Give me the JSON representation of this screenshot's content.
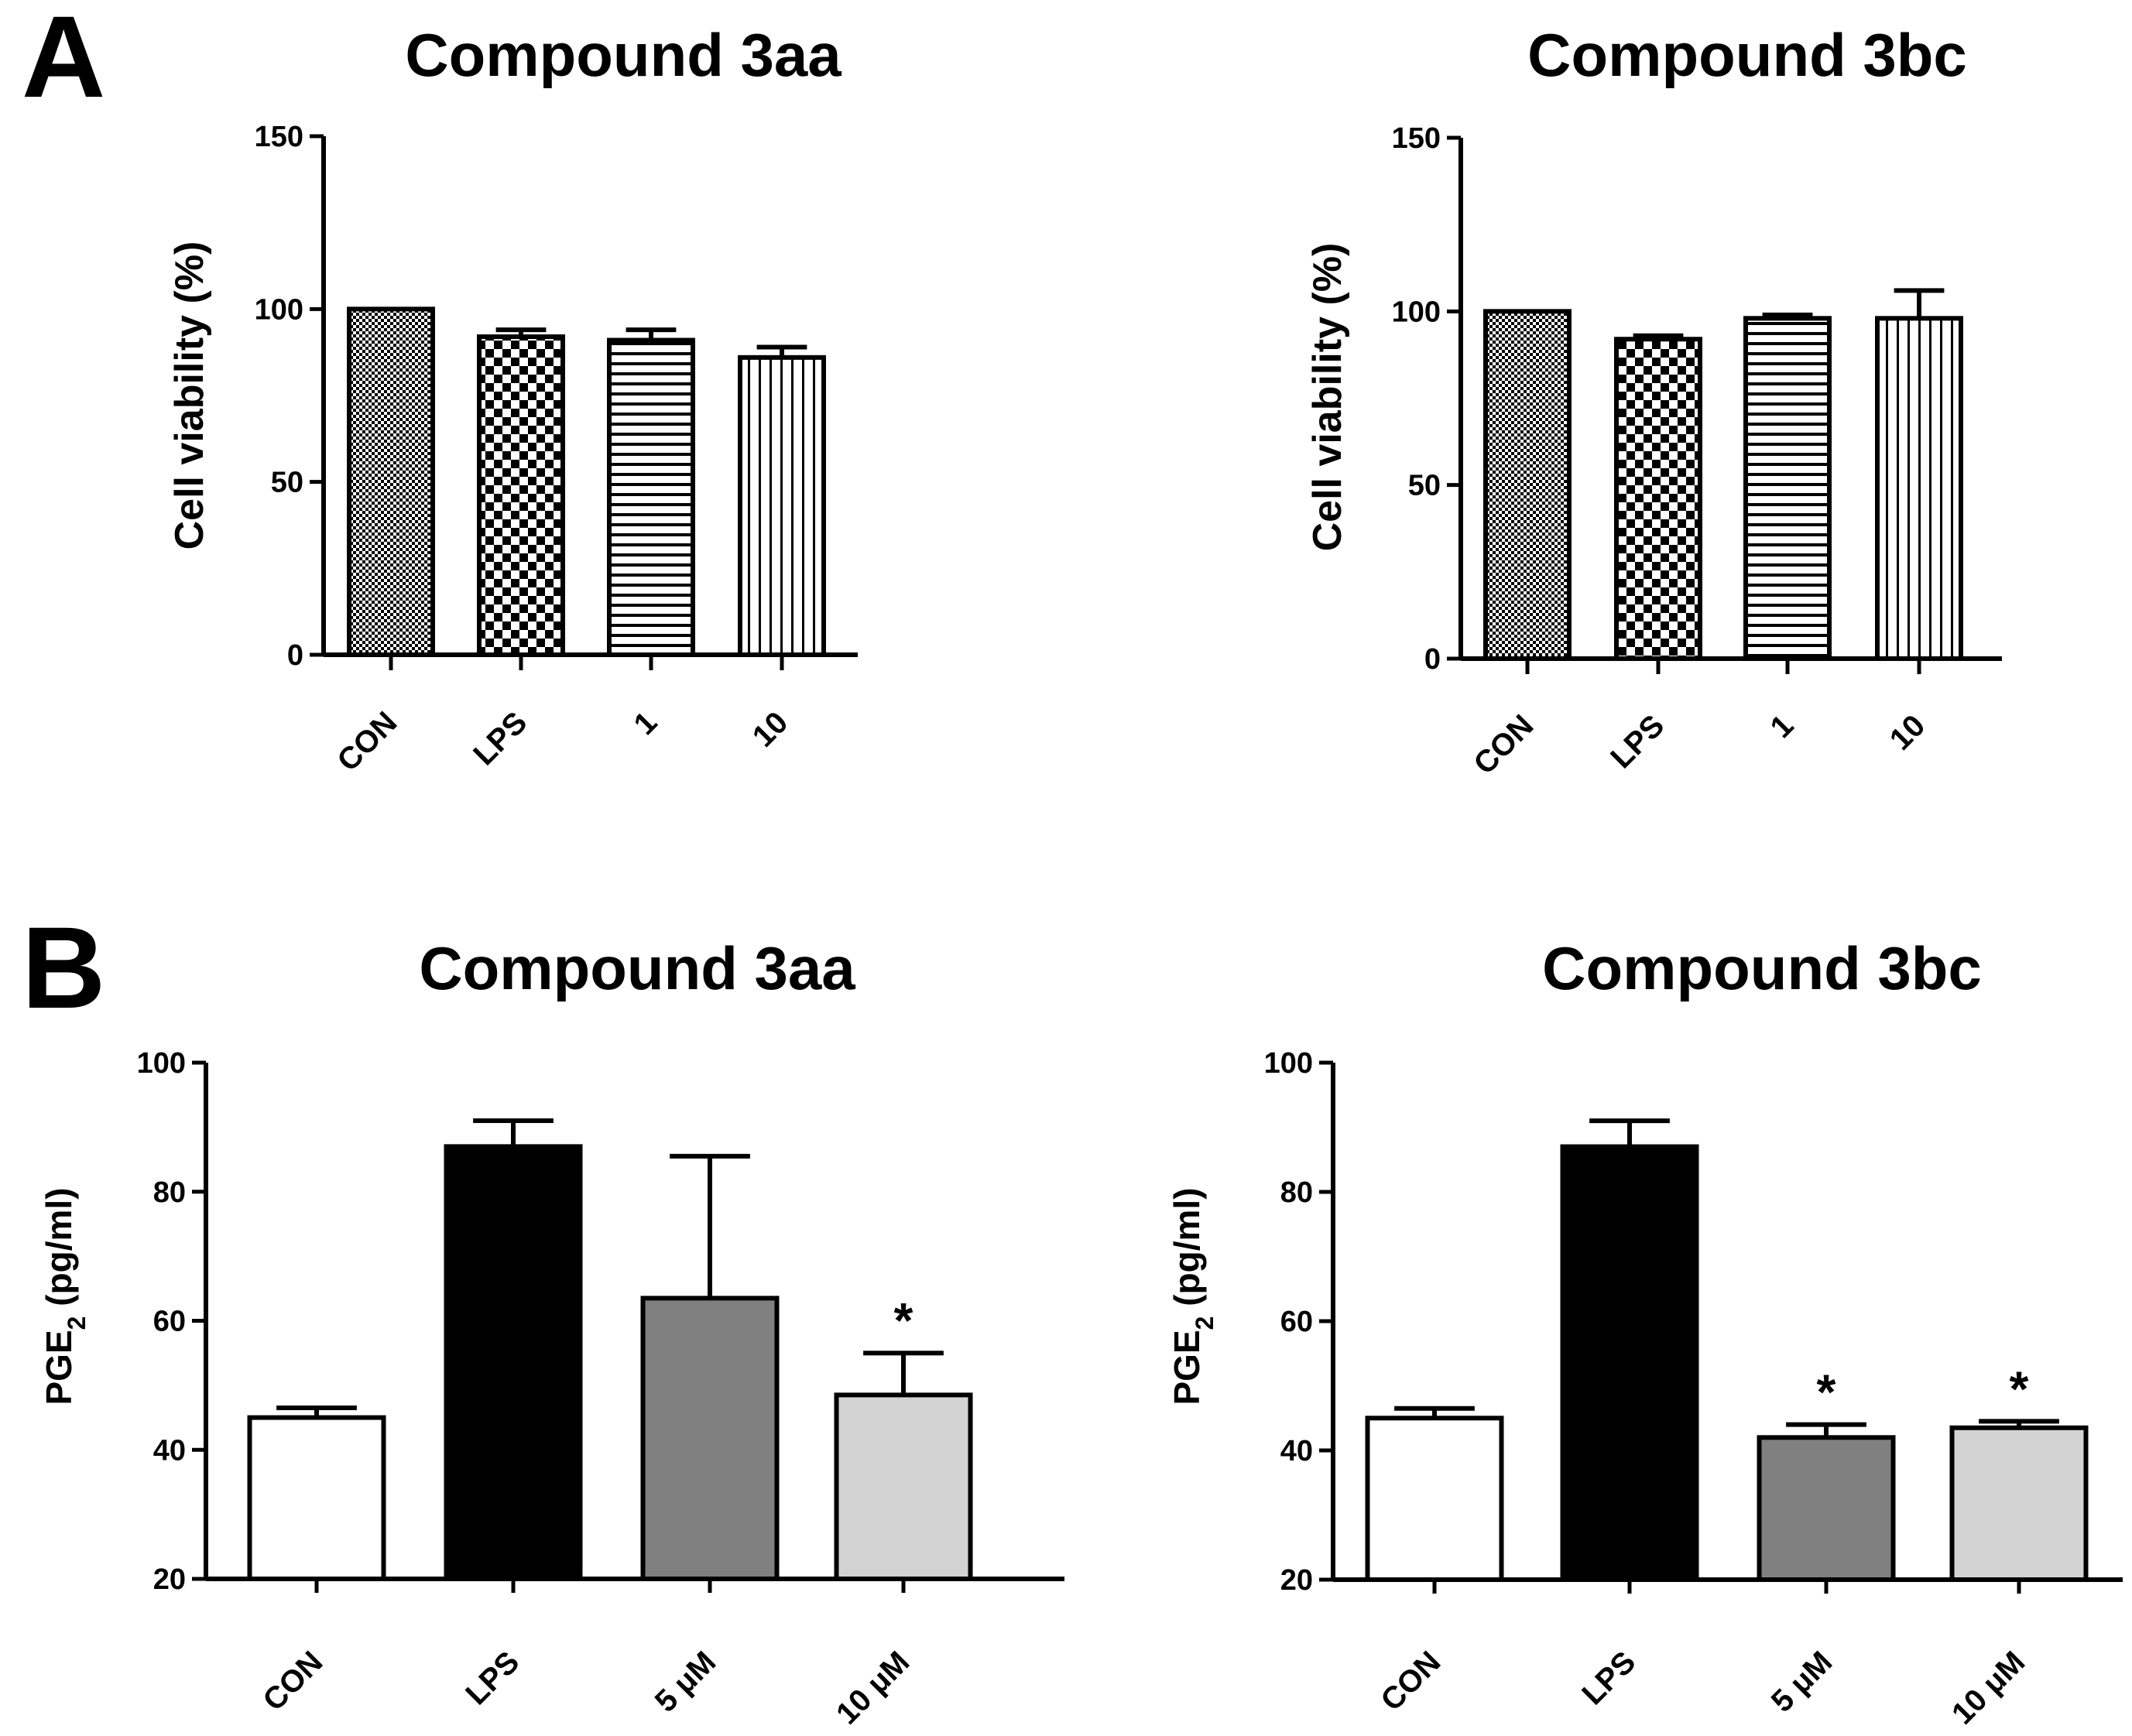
{
  "panels": {
    "A": "A",
    "B": "B"
  },
  "chart_data": [
    {
      "id": "A-3aa",
      "type": "bar",
      "title": "Compound 3aa",
      "ylabel": "Cell viability (%)",
      "xlabel": "",
      "ylim": [
        0,
        150
      ],
      "yticks": [
        0,
        50,
        100,
        150
      ],
      "categories": [
        "CON",
        "LPS",
        "1",
        "10"
      ],
      "values": [
        100,
        92,
        91,
        86
      ],
      "errors": [
        0,
        2,
        3,
        3
      ],
      "fills": [
        "dense-dots",
        "checker",
        "hlines",
        "vlines"
      ],
      "significance": [
        "",
        "",
        "",
        ""
      ]
    },
    {
      "id": "A-3bc",
      "type": "bar",
      "title": "Compound 3bc",
      "ylabel": "Cell viability (%)",
      "xlabel": "",
      "ylim": [
        0,
        150
      ],
      "yticks": [
        0,
        50,
        100,
        150
      ],
      "categories": [
        "CON",
        "LPS",
        "1",
        "10"
      ],
      "values": [
        100,
        92,
        98,
        98
      ],
      "errors": [
        0,
        1,
        1,
        8
      ],
      "fills": [
        "dense-dots",
        "checker",
        "hlines",
        "vlines"
      ],
      "significance": [
        "",
        "",
        "",
        ""
      ]
    },
    {
      "id": "B-3aa",
      "type": "bar",
      "title": "Compound 3aa",
      "ylabel": "PGE",
      "ylabel_sub": "2",
      "ylabel_unit": " (pg/ml)",
      "xlabel": "",
      "ylim": [
        20,
        100
      ],
      "yticks": [
        20,
        40,
        60,
        80,
        100
      ],
      "categories": [
        "CON",
        "LPS",
        "5 μM",
        "10 μM"
      ],
      "values": [
        45,
        87,
        63.5,
        48.5
      ],
      "errors": [
        1.5,
        4,
        22,
        6.5
      ],
      "colors": [
        "#ffffff",
        "#000000",
        "#808080",
        "#d3d3d3"
      ],
      "significance": [
        "",
        "",
        "",
        "*"
      ]
    },
    {
      "id": "B-3bc",
      "type": "bar",
      "title": "Compound 3bc",
      "ylabel": "PGE",
      "ylabel_sub": "2",
      "ylabel_unit": " (pg/ml)",
      "xlabel": "",
      "ylim": [
        20,
        100
      ],
      "yticks": [
        20,
        40,
        60,
        80,
        100
      ],
      "categories": [
        "CON",
        "LPS",
        "5 μM",
        "10 μM"
      ],
      "values": [
        45,
        87,
        42,
        43.5
      ],
      "errors": [
        1.5,
        4,
        2,
        1
      ],
      "colors": [
        "#ffffff",
        "#000000",
        "#808080",
        "#d3d3d3"
      ],
      "significance": [
        "",
        "",
        "*",
        "*"
      ]
    }
  ]
}
